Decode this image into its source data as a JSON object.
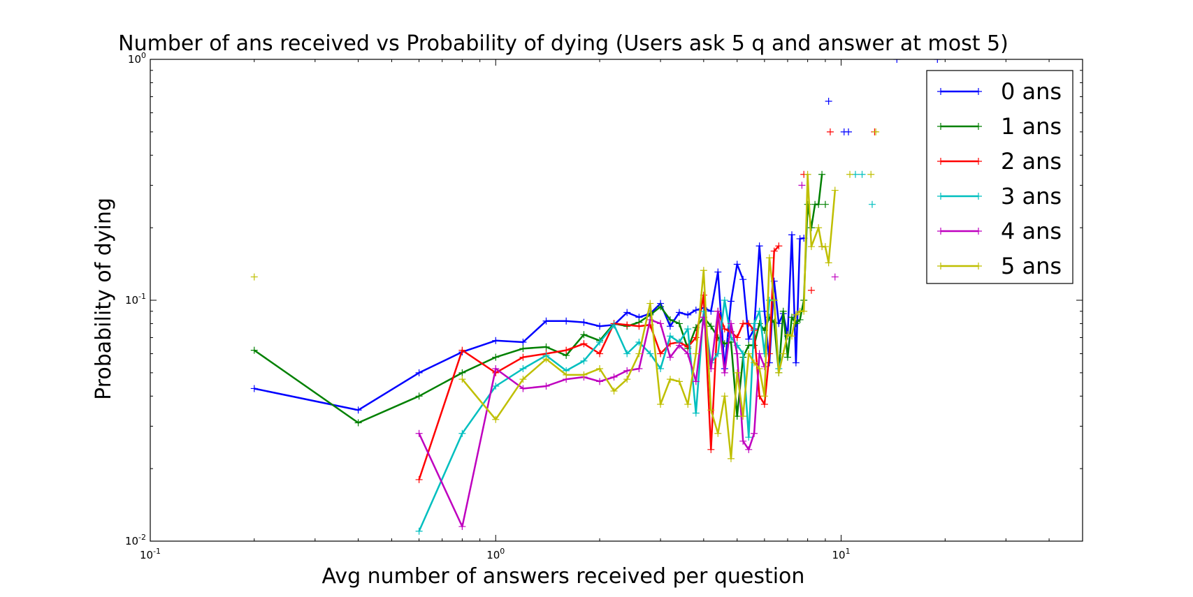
{
  "chart_data": {
    "type": "line",
    "title": "Number of ans received vs Probability of dying (Users ask 5 q and answer at most 5)",
    "xlabel": "Avg number of answers received per question",
    "ylabel": "Probability of dying",
    "xscale": "log",
    "yscale": "log",
    "xlim": [
      0.1,
      50
    ],
    "ylim": [
      0.01,
      1
    ],
    "x_ticks": [
      {
        "base": "10",
        "exp": "-1",
        "value": 0.1
      },
      {
        "base": "10",
        "exp": "0",
        "value": 1
      },
      {
        "base": "10",
        "exp": "1",
        "value": 10
      }
    ],
    "y_ticks": [
      {
        "base": "10",
        "exp": "-2",
        "value": 0.01
      },
      {
        "base": "10",
        "exp": "-1",
        "value": 0.1
      },
      {
        "base": "10",
        "exp": "0",
        "value": 1
      }
    ],
    "grid": false,
    "legend_position": "top-right",
    "marker": "+",
    "series": [
      {
        "name": "0 ans",
        "color": "#0000ff",
        "points": [
          [
            0.2,
            0.043
          ],
          [
            0.4,
            0.035
          ],
          [
            0.6,
            0.05
          ],
          [
            0.8,
            0.061
          ],
          [
            1.0,
            0.068
          ],
          [
            1.2,
            0.067
          ],
          [
            1.4,
            0.082
          ],
          [
            1.6,
            0.082
          ],
          [
            1.8,
            0.081
          ],
          [
            2.0,
            0.078
          ],
          [
            2.2,
            0.079
          ],
          [
            2.4,
            0.089
          ],
          [
            2.6,
            0.085
          ],
          [
            2.8,
            0.088
          ],
          [
            3.0,
            0.097
          ],
          [
            3.2,
            0.078
          ],
          [
            3.4,
            0.089
          ],
          [
            3.6,
            0.087
          ],
          [
            3.8,
            0.091
          ],
          [
            4.0,
            0.093
          ],
          [
            4.2,
            0.09
          ],
          [
            4.4,
            0.131
          ],
          [
            4.6,
            0.052
          ],
          [
            4.8,
            0.099
          ],
          [
            5.0,
            0.141
          ],
          [
            5.2,
            0.122
          ],
          [
            5.4,
            0.069
          ],
          [
            5.6,
            0.076
          ],
          [
            5.8,
            0.168
          ],
          [
            6.0,
            0.09
          ],
          [
            6.2,
            0.055
          ],
          [
            6.4,
            0.12
          ],
          [
            6.6,
            0.08
          ],
          [
            6.8,
            0.088
          ],
          [
            7.0,
            0.071
          ],
          [
            7.2,
            0.187
          ],
          [
            7.4,
            0.055
          ],
          [
            7.6,
            0.18
          ],
          [
            7.8,
            0.181
          ]
        ],
        "isolated_points": [
          [
            9.2,
            0.67
          ],
          [
            10.2,
            0.5
          ],
          [
            10.5,
            0.5
          ],
          [
            14.5,
            1.0
          ],
          [
            19.0,
            1.0
          ]
        ]
      },
      {
        "name": "1 ans",
        "color": "#008000",
        "points": [
          [
            0.2,
            0.062
          ],
          [
            0.4,
            0.031
          ],
          [
            0.6,
            0.04
          ],
          [
            0.8,
            0.05
          ],
          [
            1.0,
            0.058
          ],
          [
            1.2,
            0.063
          ],
          [
            1.4,
            0.064
          ],
          [
            1.6,
            0.059
          ],
          [
            1.8,
            0.072
          ],
          [
            2.0,
            0.068
          ],
          [
            2.2,
            0.08
          ],
          [
            2.4,
            0.078
          ],
          [
            2.6,
            0.081
          ],
          [
            2.8,
            0.087
          ],
          [
            3.0,
            0.094
          ],
          [
            3.2,
            0.083
          ],
          [
            3.4,
            0.08
          ],
          [
            3.6,
            0.063
          ],
          [
            3.8,
            0.077
          ],
          [
            4.0,
            0.085
          ],
          [
            4.2,
            0.078
          ],
          [
            4.4,
            0.07
          ],
          [
            4.6,
            0.066
          ],
          [
            4.8,
            0.067
          ],
          [
            5.0,
            0.033
          ],
          [
            5.2,
            0.058
          ],
          [
            5.4,
            0.065
          ],
          [
            5.6,
            0.065
          ],
          [
            5.8,
            0.08
          ],
          [
            6.0,
            0.075
          ],
          [
            6.2,
            0.085
          ],
          [
            6.4,
            0.081
          ],
          [
            6.6,
            0.05
          ],
          [
            6.8,
            0.09
          ],
          [
            7.0,
            0.058
          ],
          [
            7.2,
            0.085
          ],
          [
            7.4,
            0.08
          ],
          [
            7.6,
            0.083
          ],
          [
            7.8,
            0.1
          ],
          [
            8.0,
            0.25
          ],
          [
            8.2,
            0.2
          ],
          [
            8.4,
            0.25
          ],
          [
            8.6,
            0.25
          ],
          [
            8.8,
            0.333
          ]
        ],
        "isolated_points": [
          [
            9.0,
            0.25
          ]
        ]
      },
      {
        "name": "2 ans",
        "color": "#ff0000",
        "points": [
          [
            0.6,
            0.018
          ],
          [
            0.8,
            0.062
          ],
          [
            1.0,
            0.05
          ],
          [
            1.2,
            0.058
          ],
          [
            1.4,
            0.06
          ],
          [
            1.6,
            0.062
          ],
          [
            1.8,
            0.066
          ],
          [
            2.0,
            0.06
          ],
          [
            2.2,
            0.08
          ],
          [
            2.4,
            0.079
          ],
          [
            2.6,
            0.078
          ],
          [
            2.8,
            0.079
          ],
          [
            3.0,
            0.06
          ],
          [
            3.2,
            0.066
          ],
          [
            3.4,
            0.067
          ],
          [
            3.6,
            0.064
          ],
          [
            3.8,
            0.07
          ],
          [
            4.0,
            0.105
          ],
          [
            4.2,
            0.024
          ],
          [
            4.4,
            0.09
          ],
          [
            4.6,
            0.076
          ],
          [
            4.8,
            0.074
          ],
          [
            5.0,
            0.07
          ],
          [
            5.2,
            0.08
          ],
          [
            5.4,
            0.08
          ],
          [
            5.6,
            0.075
          ],
          [
            5.8,
            0.04
          ],
          [
            6.0,
            0.037
          ],
          [
            6.2,
            0.06
          ],
          [
            6.4,
            0.16
          ],
          [
            6.6,
            0.168
          ]
        ],
        "isolated_points": [
          [
            7.8,
            0.333
          ],
          [
            8.2,
            0.11
          ],
          [
            9.3,
            0.5
          ],
          [
            12.5,
            0.5
          ]
        ]
      },
      {
        "name": "3 ans",
        "color": "#00bfbf",
        "points": [
          [
            0.6,
            0.011
          ],
          [
            0.8,
            0.028
          ],
          [
            1.0,
            0.044
          ],
          [
            1.2,
            0.052
          ],
          [
            1.4,
            0.059
          ],
          [
            1.6,
            0.051
          ],
          [
            1.8,
            0.056
          ],
          [
            2.0,
            0.067
          ],
          [
            2.2,
            0.079
          ],
          [
            2.4,
            0.06
          ],
          [
            2.6,
            0.067
          ],
          [
            2.8,
            0.06
          ],
          [
            3.0,
            0.052
          ],
          [
            3.2,
            0.071
          ],
          [
            3.4,
            0.067
          ],
          [
            3.6,
            0.076
          ],
          [
            3.8,
            0.034
          ],
          [
            4.0,
            0.09
          ],
          [
            4.2,
            0.055
          ],
          [
            4.4,
            0.06
          ],
          [
            4.6,
            0.1
          ],
          [
            4.8,
            0.07
          ],
          [
            5.0,
            0.065
          ],
          [
            5.2,
            0.06
          ],
          [
            5.4,
            0.027
          ],
          [
            5.6,
            0.08
          ],
          [
            5.8,
            0.09
          ],
          [
            6.0,
            0.06
          ],
          [
            6.2,
            0.1
          ],
          [
            6.4,
            0.1
          ],
          [
            6.6,
            0.052
          ],
          [
            6.8,
            0.06
          ]
        ],
        "isolated_points": [
          [
            11.0,
            0.333
          ],
          [
            11.5,
            0.333
          ],
          [
            12.3,
            0.25
          ]
        ]
      },
      {
        "name": "4 ans",
        "color": "#bf00bf",
        "points": [
          [
            0.6,
            0.028
          ],
          [
            0.8,
            0.0115
          ],
          [
            1.0,
            0.052
          ],
          [
            1.2,
            0.043
          ],
          [
            1.4,
            0.044
          ],
          [
            1.6,
            0.047
          ],
          [
            1.8,
            0.048
          ],
          [
            2.0,
            0.046
          ],
          [
            2.2,
            0.048
          ],
          [
            2.4,
            0.051
          ],
          [
            2.6,
            0.052
          ],
          [
            2.8,
            0.083
          ],
          [
            3.0,
            0.08
          ],
          [
            3.2,
            0.058
          ],
          [
            3.4,
            0.065
          ],
          [
            3.6,
            0.06
          ],
          [
            3.8,
            0.046
          ],
          [
            4.0,
            0.085
          ],
          [
            4.2,
            0.052
          ],
          [
            4.4,
            0.09
          ],
          [
            4.6,
            0.05
          ],
          [
            4.8,
            0.08
          ],
          [
            5.0,
            0.06
          ],
          [
            5.2,
            0.026
          ],
          [
            5.4,
            0.024
          ],
          [
            5.6,
            0.028
          ],
          [
            5.8,
            0.06
          ],
          [
            6.0,
            0.053
          ]
        ],
        "isolated_points": [
          [
            7.7,
            0.3
          ],
          [
            8.8,
            0.167
          ],
          [
            9.6,
            0.125
          ]
        ]
      },
      {
        "name": "5 ans",
        "color": "#bfbf00",
        "points": [
          [
            0.8,
            0.047
          ],
          [
            1.0,
            0.032
          ],
          [
            1.2,
            0.047
          ],
          [
            1.4,
            0.057
          ],
          [
            1.6,
            0.049
          ],
          [
            1.8,
            0.049
          ],
          [
            2.0,
            0.052
          ],
          [
            2.2,
            0.042
          ],
          [
            2.4,
            0.047
          ],
          [
            2.6,
            0.06
          ],
          [
            2.8,
            0.097
          ],
          [
            3.0,
            0.037
          ],
          [
            3.2,
            0.047
          ],
          [
            3.4,
            0.046
          ],
          [
            3.6,
            0.037
          ],
          [
            3.8,
            0.06
          ],
          [
            4.0,
            0.133
          ],
          [
            4.2,
            0.035
          ],
          [
            4.4,
            0.028
          ],
          [
            4.6,
            0.04
          ],
          [
            4.8,
            0.022
          ],
          [
            5.0,
            0.05
          ],
          [
            5.2,
            0.033
          ],
          [
            5.4,
            0.06
          ],
          [
            5.6,
            0.055
          ],
          [
            5.8,
            0.052
          ],
          [
            6.0,
            0.04
          ],
          [
            6.2,
            0.15
          ],
          [
            6.4,
            0.1
          ],
          [
            6.6,
            0.05
          ],
          [
            6.8,
            0.06
          ],
          [
            7.0,
            0.072
          ],
          [
            7.2,
            0.071
          ],
          [
            7.4,
            0.087
          ],
          [
            7.6,
            0.09
          ],
          [
            7.8,
            0.09
          ],
          [
            8.0,
            0.333
          ],
          [
            8.2,
            0.167
          ],
          [
            8.6,
            0.2
          ],
          [
            8.8,
            0.167
          ],
          [
            9.0,
            0.167
          ],
          [
            9.2,
            0.143
          ],
          [
            9.6,
            0.286
          ]
        ],
        "isolated_points": [
          [
            0.2,
            0.125
          ],
          [
            10.6,
            0.333
          ],
          [
            12.2,
            0.333
          ],
          [
            12.6,
            0.5
          ]
        ]
      }
    ]
  }
}
